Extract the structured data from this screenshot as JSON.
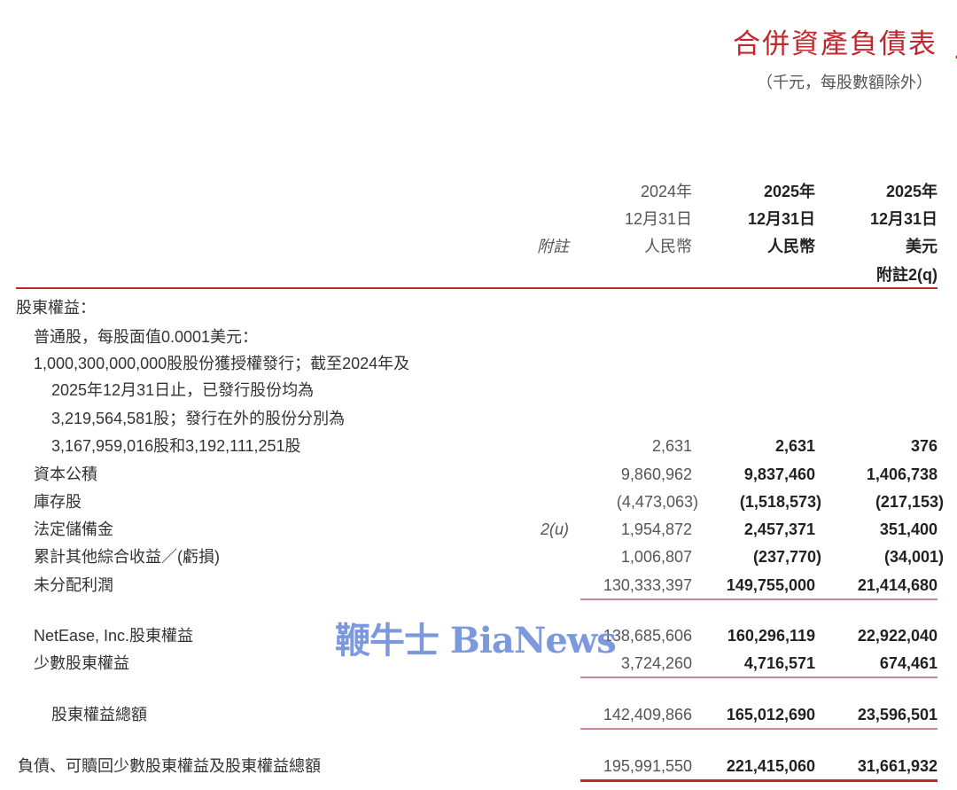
{
  "header": {
    "title": "合併資產負債表",
    "subtitle": "（千元，每股數額除外）"
  },
  "columns": {
    "note_label": "附註",
    "col1": {
      "year": "2024年",
      "date": "12月31日",
      "currency": "人民幣"
    },
    "col2": {
      "year": "2025年",
      "date": "12月31日",
      "currency": "人民幣"
    },
    "col3": {
      "year": "2025年",
      "date": "12月31日",
      "currency": "美元",
      "note": "附註2(q)"
    }
  },
  "rows": [
    {
      "label": "股東權益："
    },
    {
      "label": "普通股，每股面值0.0001美元："
    },
    {
      "label": "1,000,300,000,000股股份獲授權發行；截至2024年及"
    },
    {
      "label": "2025年12月31日止，已發行股份均為"
    },
    {
      "label": "3,219,564,581股；發行在外的股份分別為"
    },
    {
      "label": "3,167,959,016股和3,192,111,251股",
      "v1": "2,631",
      "v2": "2,631",
      "v3": "376"
    },
    {
      "label": "資本公積",
      "v1": "9,860,962",
      "v2": "9,837,460",
      "v3": "1,406,738"
    },
    {
      "label": "庫存股",
      "v1": "(4,473,063)",
      "v2": "(1,518,573)",
      "v3": "(217,153)"
    },
    {
      "label": "法定儲備金",
      "note": "2(u)",
      "v1": "1,954,872",
      "v2": "2,457,371",
      "v3": "351,400"
    },
    {
      "label": "累計其他綜合收益／(虧損)",
      "v1": "1,006,807",
      "v2": "(237,770)",
      "v3": "(34,001)"
    },
    {
      "label": "未分配利潤",
      "v1": "130,333,397",
      "v2": "149,755,000",
      "v3": "21,414,680"
    },
    {
      "label": "NetEase, Inc.股東權益",
      "v1": "138,685,606",
      "v2": "160,296,119",
      "v3": "22,922,040"
    },
    {
      "label": "少數股東權益",
      "v1": "3,724,260",
      "v2": "4,716,571",
      "v3": "674,461"
    },
    {
      "label": "股東權益總額",
      "v1": "142,409,866",
      "v2": "165,012,690",
      "v3": "23,596,501"
    },
    {
      "label": "負債、可贖回少數股東權益及股東權益總額",
      "v1": "195,991,550",
      "v2": "221,415,060",
      "v3": "31,661,932"
    }
  ],
  "watermark": "鞭牛士 BiaNews",
  "colors": {
    "accent_red": "#c1272d",
    "rule": "#c98a93",
    "watermark": "#6f8fdb"
  }
}
